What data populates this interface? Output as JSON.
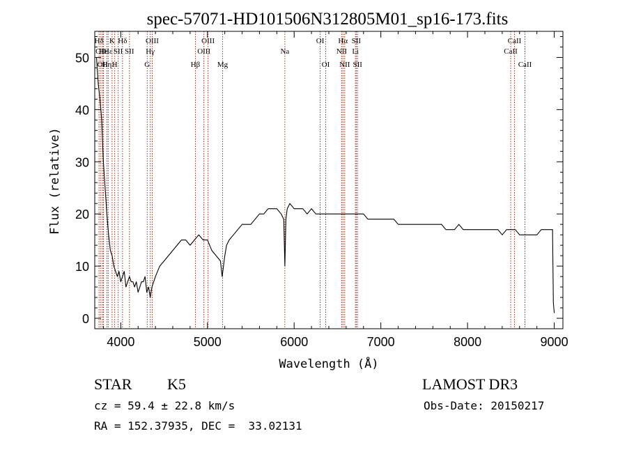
{
  "chart_data": {
    "type": "line",
    "title": "spec-57071-HD101506N312805M01_sp16-173.fits",
    "xlabel": "Wavelength (Å)",
    "ylabel": "Flux (relative)",
    "xlim": [
      3700,
      9100
    ],
    "ylim": [
      -2,
      55
    ],
    "xticks": [
      4000,
      5000,
      6000,
      7000,
      8000,
      9000
    ],
    "yticks": [
      0,
      10,
      20,
      30,
      40,
      50
    ],
    "grid": false,
    "series": [
      {
        "color": "#000000",
        "x": [
          3720,
          3740,
          3760,
          3780,
          3800,
          3820,
          3840,
          3860,
          3880,
          3900,
          3920,
          3940,
          3960,
          3980,
          4000,
          4020,
          4040,
          4060,
          4080,
          4100,
          4120,
          4140,
          4160,
          4180,
          4200,
          4220,
          4240,
          4260,
          4280,
          4300,
          4320,
          4340,
          4360,
          4380,
          4400,
          4450,
          4500,
          4550,
          4600,
          4650,
          4700,
          4750,
          4800,
          4850,
          4900,
          4950,
          5000,
          5050,
          5100,
          5150,
          5170,
          5185,
          5200,
          5220,
          5250,
          5300,
          5350,
          5400,
          5450,
          5500,
          5550,
          5600,
          5650,
          5700,
          5750,
          5800,
          5850,
          5880,
          5893,
          5905,
          5920,
          5950,
          6000,
          6050,
          6100,
          6150,
          6200,
          6250,
          6300,
          6350,
          6400,
          6450,
          6500,
          6550,
          6600,
          6650,
          6700,
          6750,
          6800,
          6850,
          6900,
          6950,
          7000,
          7050,
          7100,
          7150,
          7200,
          7250,
          7300,
          7350,
          7400,
          7450,
          7500,
          7550,
          7600,
          7650,
          7700,
          7750,
          7800,
          7850,
          7900,
          7950,
          8000,
          8050,
          8100,
          8150,
          8200,
          8250,
          8300,
          8350,
          8400,
          8450,
          8500,
          8550,
          8600,
          8650,
          8700,
          8750,
          8800,
          8850,
          8900,
          8950,
          8980,
          8990,
          9000
        ],
        "y": [
          50,
          45,
          42,
          38,
          30,
          25,
          20,
          16,
          13,
          12,
          10,
          9,
          8,
          9,
          7,
          8,
          9,
          6,
          7,
          8,
          7,
          7,
          6,
          7,
          5,
          6,
          7,
          7,
          8,
          5,
          6,
          4,
          6,
          7,
          8,
          10,
          11,
          12,
          13,
          14,
          15,
          15,
          14,
          15,
          16,
          15,
          15,
          13,
          12,
          11,
          8,
          10,
          12,
          14,
          15,
          16,
          17,
          18,
          18,
          18,
          19,
          20,
          20,
          21,
          21,
          21,
          20,
          19,
          10,
          19,
          21,
          22,
          21,
          21,
          21,
          20,
          21,
          20,
          20,
          20,
          20,
          20,
          20,
          20,
          20,
          20,
          20,
          20,
          20,
          19,
          19,
          19,
          19,
          19,
          19,
          19,
          18,
          18,
          18,
          18,
          18,
          18,
          18,
          18,
          18,
          18,
          18,
          17,
          17,
          17,
          18,
          17,
          17,
          17,
          17,
          17,
          17,
          17,
          17,
          17,
          16,
          17,
          17,
          17,
          16,
          16,
          16,
          16,
          16,
          17,
          17,
          17,
          17,
          3,
          1
        ]
      }
    ],
    "lines": [
      {
        "x": 3750,
        "labels": [
          "Hδ"
        ],
        "row": 1
      },
      {
        "x": 3770,
        "labels": [
          "OII"
        ],
        "row": 2
      },
      {
        "x": 3790,
        "labels": [
          "OII"
        ],
        "row": 3
      },
      {
        "x": 3800,
        "labels": [
          "Hε"
        ],
        "row": 2
      },
      {
        "x": 3840,
        "labels": [
          "Hη"
        ],
        "row": 3
      },
      {
        "x": 3855,
        "labels": [
          "Hε"
        ],
        "row": 2
      },
      {
        "x": 3900,
        "labels": [
          "K"
        ],
        "row": 1
      },
      {
        "x": 3930,
        "labels": [
          "H"
        ],
        "row": 3
      },
      {
        "x": 3970,
        "labels": [
          "SII"
        ],
        "row": 2
      },
      {
        "x": 4020,
        "labels": [
          "Hδ"
        ],
        "row": 1
      },
      {
        "x": 4100,
        "labels": [
          "SII"
        ],
        "row": 2
      },
      {
        "x": 4305,
        "labels": [
          "G"
        ],
        "row": 3
      },
      {
        "x": 4340,
        "labels": [
          "Hγ"
        ],
        "row": 2
      },
      {
        "x": 4363,
        "labels": [
          "OIII"
        ],
        "row": 1
      },
      {
        "x": 4861,
        "labels": [
          "Hβ"
        ],
        "row": 3
      },
      {
        "x": 4959,
        "labels": [
          "OIII"
        ],
        "row": 2
      },
      {
        "x": 5007,
        "labels": [
          "OIII"
        ],
        "row": 1
      },
      {
        "x": 5175,
        "labels": [
          "Mg"
        ],
        "row": 3
      },
      {
        "x": 5893,
        "labels": [
          "Na"
        ],
        "row": 2
      },
      {
        "x": 6300,
        "labels": [
          "OI"
        ],
        "row": 1
      },
      {
        "x": 6364,
        "labels": [
          "OI"
        ],
        "row": 3
      },
      {
        "x": 6548,
        "labels": [
          "NII"
        ],
        "row": 2
      },
      {
        "x": 6563,
        "labels": [
          "Hα"
        ],
        "row": 1
      },
      {
        "x": 6583,
        "labels": [
          "NII"
        ],
        "row": 3
      },
      {
        "x": 6707,
        "labels": [
          "Li"
        ],
        "row": 2
      },
      {
        "x": 6716,
        "labels": [
          "SII"
        ],
        "row": 1
      },
      {
        "x": 6731,
        "labels": [
          "SII"
        ],
        "row": 3
      },
      {
        "x": 8498,
        "labels": [
          "CaII"
        ],
        "row": 2
      },
      {
        "x": 8542,
        "labels": [
          "CaII"
        ],
        "row": 1
      },
      {
        "x": 8662,
        "labels": [
          "CaII"
        ],
        "row": 3
      }
    ]
  },
  "info": {
    "object_class": "STAR",
    "subclass": "K5",
    "survey": "LAMOST DR3",
    "cz": "cz = 59.4 ± 22.8 km/s",
    "obs_date": "Obs-Date: 20150217",
    "coords": "RA = 152.37935, DEC =  33.02131"
  }
}
